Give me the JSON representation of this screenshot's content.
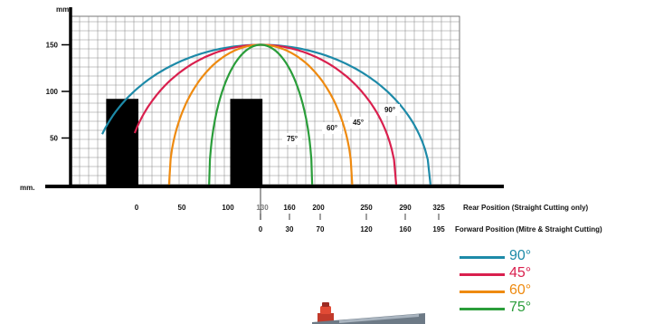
{
  "chart_data": {
    "type": "line",
    "ylabel_top": "mm.",
    "xlabel_left": "mm.",
    "y_ticks": [
      50,
      100,
      150
    ],
    "ylim": [
      0,
      170
    ],
    "xlim": [
      -30,
      345
    ],
    "rear_axis": {
      "title": "Rear Position (Straight Cutting only)",
      "ticks": [
        "0",
        "50",
        "100",
        "130",
        "160",
        "200",
        "250",
        "290",
        "325"
      ]
    },
    "forward_axis": {
      "title": "Forward Position (Mitre & Straight Cutting)",
      "ticks": [
        "0",
        "30",
        "70",
        "120",
        "160",
        "195"
      ]
    },
    "series": [
      {
        "name": "90°",
        "color": "#1d8aa8",
        "apex": [
          130,
          150
        ],
        "x_at_zero": [
          -48,
          308
        ],
        "x_end": 308
      },
      {
        "name": "45°",
        "color": "#d9204e",
        "apex": [
          130,
          150
        ],
        "x_at_zero": [
          -12,
          272
        ],
        "x_end": 272
      },
      {
        "name": "60°",
        "color": "#ee8a10",
        "apex": [
          130,
          150
        ],
        "x_at_zero": [
          34,
          226
        ],
        "x_end": 226
      },
      {
        "name": "75°",
        "color": "#2a9d3a",
        "apex": [
          130,
          150
        ],
        "x_at_zero": [
          76,
          184
        ],
        "x_end": 184
      }
    ],
    "curve_labels": [
      "90°",
      "45°",
      "60°",
      "75°"
    ],
    "blocks": [
      {
        "x0": -30,
        "x1": 0,
        "y1": 92
      },
      {
        "x0": 100,
        "x1": 130,
        "y1": 92
      }
    ]
  },
  "legend": {
    "items": [
      {
        "label": "90°",
        "color": "#1d8aa8"
      },
      {
        "label": "45°",
        "color": "#d9204e"
      },
      {
        "label": "60°",
        "color": "#ee8a10"
      },
      {
        "label": "75°",
        "color": "#2a9d3a"
      }
    ]
  }
}
